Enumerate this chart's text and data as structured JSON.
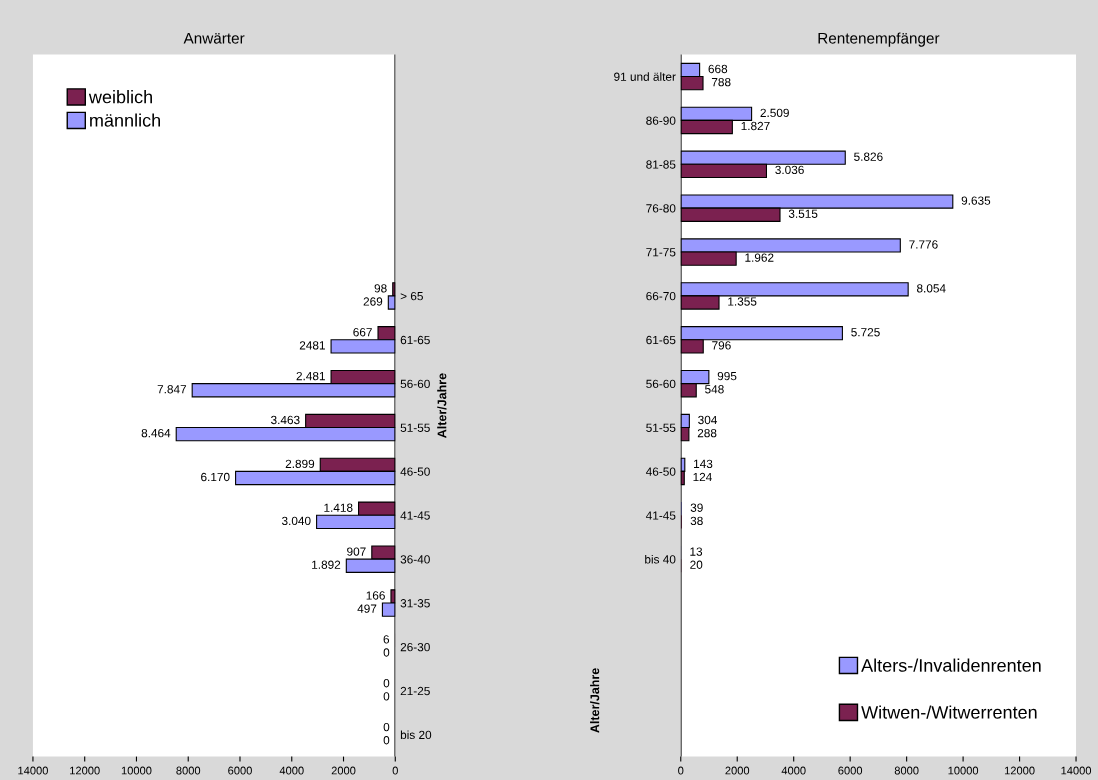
{
  "chart_data": [
    {
      "type": "bar",
      "orientation": "horizontal",
      "title": "Anwärter",
      "ylabel": "Alter/Jahre",
      "categories": [
        null,
        null,
        null,
        null,
        null,
        "> 65",
        "61-65",
        "56-60",
        "51-55",
        "46-50",
        "41-45",
        "36-40",
        "31-35",
        "26-30",
        "21-25",
        "bis 20"
      ],
      "series": [
        {
          "name": "weiblich",
          "color": "#7b2150",
          "values": [
            null,
            null,
            null,
            null,
            null,
            98,
            667,
            2481,
            3463,
            2899,
            1418,
            907,
            166,
            6,
            0,
            0
          ],
          "value_labels": [
            null,
            null,
            null,
            null,
            null,
            "98",
            "667",
            "2.481",
            "3.463",
            "2.899",
            "1.418",
            "907",
            "166",
            "6",
            "0",
            "0"
          ]
        },
        {
          "name": "männlich",
          "color": "#9999ff",
          "values": [
            null,
            null,
            null,
            null,
            null,
            269,
            2481,
            7847,
            8464,
            6170,
            3040,
            1892,
            497,
            0,
            0,
            0
          ],
          "value_labels": [
            null,
            null,
            null,
            null,
            null,
            "269",
            "2481",
            "7.847",
            "8.464",
            "6.170",
            "3.040",
            "1.892",
            "497",
            "0",
            "0",
            "0"
          ]
        }
      ],
      "xlim": [
        14000,
        0
      ],
      "xticks": [
        14000,
        12000,
        10000,
        8000,
        6000,
        4000,
        2000,
        0
      ],
      "legend": "top left",
      "grid": false
    },
    {
      "type": "bar",
      "orientation": "horizontal",
      "title": "Rentenempfänger",
      "ylabel": "Alter/Jahre",
      "categories": [
        "91 und älter",
        "86-90",
        "81-85",
        "76-80",
        "71-75",
        "66-70",
        "61-65",
        "56-60",
        "51-55",
        "46-50",
        "41-45",
        "bis 40",
        null,
        null,
        null,
        null
      ],
      "series": [
        {
          "name": "Alters-/Invalidenrenten",
          "color": "#9999ff",
          "values": [
            668,
            2509,
            5826,
            9635,
            7776,
            8054,
            5725,
            995,
            304,
            143,
            39,
            13,
            null,
            null,
            null,
            null
          ],
          "value_labels": [
            "668",
            "2.509",
            "5.826",
            "9.635",
            "7.776",
            "8.054",
            "5.725",
            "995",
            "304",
            "143",
            "39",
            "13",
            null,
            null,
            null,
            null
          ]
        },
        {
          "name": "Witwen-/Witwerrenten",
          "color": "#7b2150",
          "values": [
            788,
            1827,
            3036,
            3515,
            1962,
            1355,
            796,
            548,
            288,
            124,
            38,
            20,
            null,
            null,
            null,
            null
          ],
          "value_labels": [
            "788",
            "1.827",
            "3.036",
            "3.515",
            "1.962",
            "1.355",
            "796",
            "548",
            "288",
            "124",
            "38",
            "20",
            null,
            null,
            null,
            null
          ]
        }
      ],
      "xlim": [
        0,
        14000
      ],
      "xticks": [
        0,
        2000,
        4000,
        6000,
        8000,
        10000,
        12000,
        14000
      ],
      "legend": "bottom right",
      "grid": false
    }
  ]
}
